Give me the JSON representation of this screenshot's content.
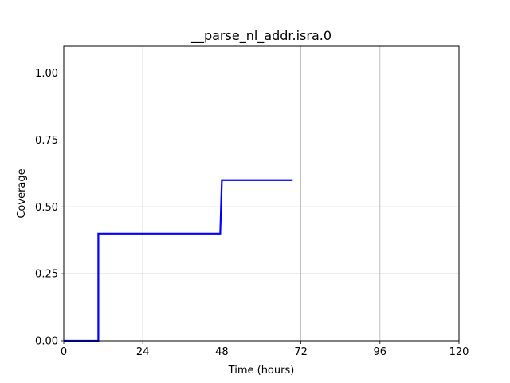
{
  "chart_data": {
    "type": "line",
    "title": "__parse_nl_addr.isra.0",
    "xlabel": "Time (hours)",
    "ylabel": "Coverage",
    "xlim": [
      0,
      120
    ],
    "ylim": [
      0,
      1.1
    ],
    "x_ticks": [
      0,
      24,
      48,
      72,
      96,
      120
    ],
    "x_tick_labels": [
      "0",
      "24",
      "48",
      "72",
      "96",
      "120"
    ],
    "y_ticks": [
      0,
      0.25,
      0.5,
      0.75,
      1.0
    ],
    "y_tick_labels": [
      "0.00",
      "0.25",
      "0.50",
      "0.75",
      "1.00"
    ],
    "grid": true,
    "series": [
      {
        "color": "#0000ff",
        "step": true,
        "x": [
          0,
          10.5,
          10.5,
          47.5,
          48,
          69.5
        ],
        "y": [
          0,
          0,
          0.4,
          0.4,
          0.6,
          0.6
        ]
      }
    ]
  }
}
